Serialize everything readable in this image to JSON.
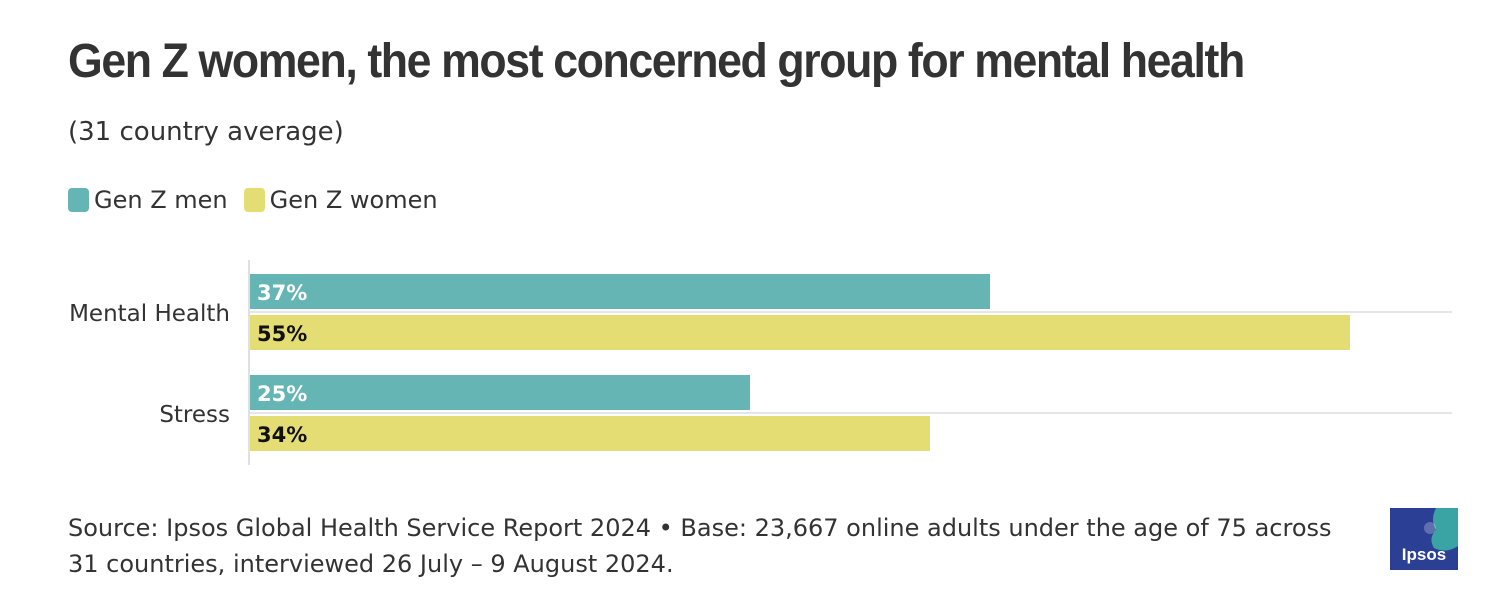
{
  "title": "Gen Z women, the most concerned group for mental health",
  "subtitle": "(31 country average)",
  "legend": [
    {
      "label": "Gen Z men",
      "color": "#64b5b3"
    },
    {
      "label": "Gen Z women",
      "color": "#e3dd73"
    }
  ],
  "chart_data": {
    "type": "bar",
    "orientation": "horizontal",
    "categories": [
      "Mental Health",
      "Stress"
    ],
    "series": [
      {
        "name": "Gen Z men",
        "values": [
          37,
          25
        ],
        "labels": [
          "37%",
          "25%"
        ],
        "color": "#64b5b3"
      },
      {
        "name": "Gen Z women",
        "values": [
          55,
          34
        ],
        "labels": [
          "55%",
          "34%"
        ],
        "color": "#e3dd73"
      }
    ],
    "xlim": [
      0,
      60
    ],
    "grid": true,
    "legend_position": "top-left"
  },
  "footer": {
    "source": "Source: Ipsos Global Health Service Report 2024 • Base: 23,667 online adults under the age of 75 across 31 countries, interviewed 26 July – 9 August 2024."
  },
  "logo": {
    "text": "Ipsos",
    "icon": "ipsos-logo-icon"
  }
}
